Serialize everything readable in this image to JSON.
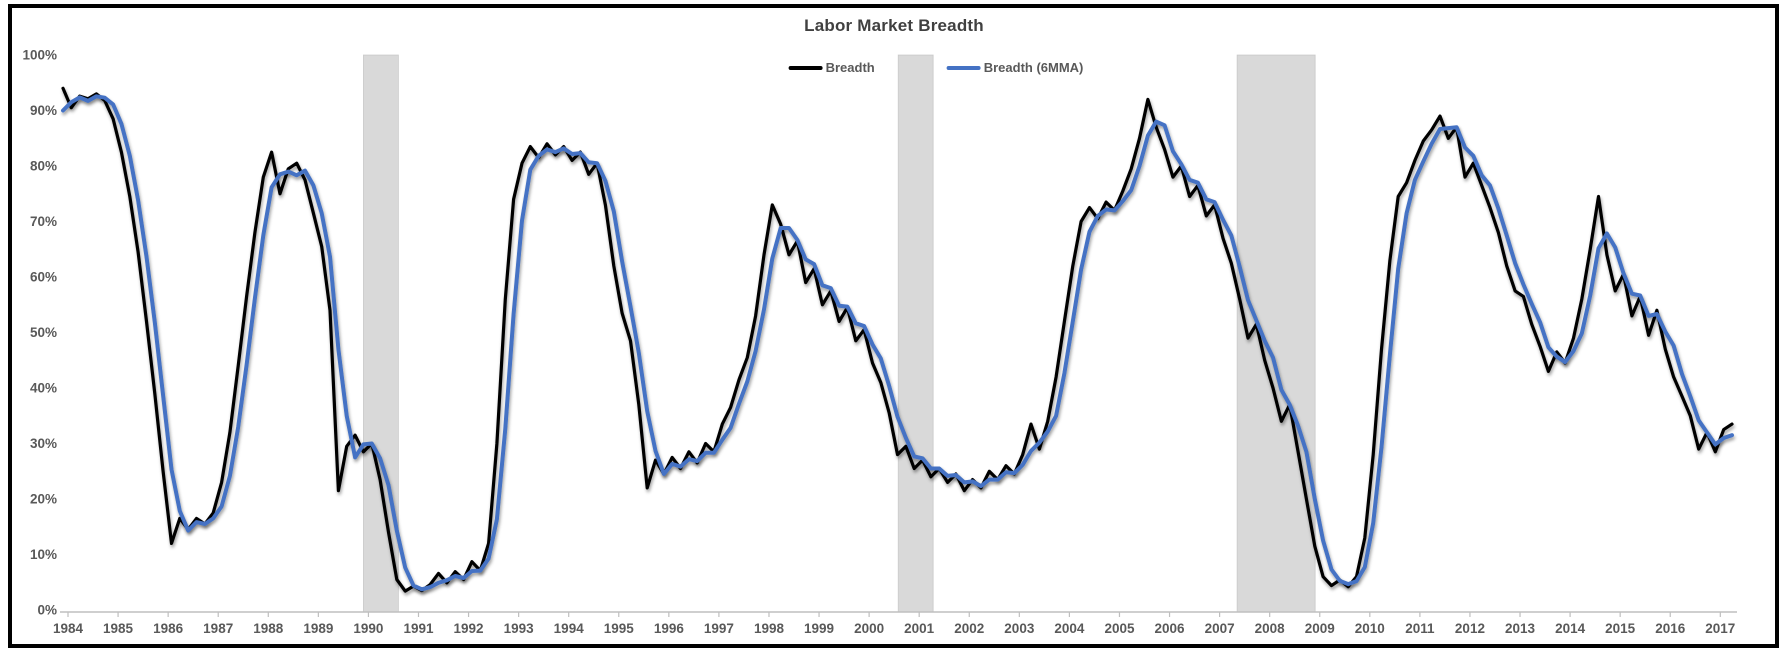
{
  "window": {
    "background": "#FFFFFF",
    "frame_color": "#000000"
  },
  "chart_data": {
    "type": "line",
    "title": "Labor Market Breadth",
    "title_color": "#404040",
    "background": "#FFFFFF",
    "grid": "off",
    "legend_position": "top-center",
    "axis_color": "#BFBFBF",
    "label_color": "#595959",
    "band_color": "#D9D9D9",
    "band_edge_color": "#BDBDBD",
    "y_axis": {
      "min": 0,
      "max": 100,
      "tick_labels": [
        "0%",
        "10%",
        "20%",
        "30%",
        "40%",
        "50%",
        "60%",
        "70%",
        "80%",
        "90%",
        "100%"
      ]
    },
    "x_axis": {
      "tick_labels": [
        "1984",
        "1985",
        "1986",
        "1987",
        "1988",
        "1989",
        "1990",
        "1991",
        "1992",
        "1993",
        "1994",
        "1995",
        "1996",
        "1997",
        "1998",
        "1999",
        "2000",
        "2001",
        "2002",
        "2003",
        "2004",
        "2005",
        "2006",
        "2007",
        "2008",
        "2009",
        "2010",
        "2011",
        "2012",
        "2013",
        "2014",
        "2015",
        "2016",
        "2017"
      ]
    },
    "recession_bands": [
      {
        "from": 1990.4,
        "to": 1991.1
      },
      {
        "from": 2001.08,
        "to": 2001.78
      },
      {
        "from": 2007.85,
        "to": 2009.41
      }
    ],
    "x_start": 1984.4,
    "x_step_years": 0.16667,
    "series": [
      {
        "name": "Breadth",
        "color": "#000000",
        "stroke_width": 3.2,
        "values": [
          94,
          90.5,
          92.6,
          92.1,
          93,
          91.8,
          88.5,
          82.5,
          74.5,
          64.5,
          52,
          39,
          25,
          12,
          16.5,
          14.5,
          16.5,
          15.5,
          17.5,
          23,
          32,
          44,
          56.5,
          68,
          78,
          82.5,
          75,
          79.5,
          80.5,
          77.5,
          71.5,
          65.5,
          54,
          21.5,
          29.5,
          31.5,
          28.5,
          30,
          23.5,
          14,
          5.5,
          3.4,
          4.3,
          3.5,
          4.6,
          6.6,
          4.9,
          6.9,
          5.5,
          8.7,
          7.1,
          12,
          30,
          56,
          74,
          80.5,
          83.5,
          81.5,
          84,
          82,
          83.5,
          81,
          82.5,
          78.5,
          80.5,
          73,
          62,
          53.5,
          48.5,
          37,
          22,
          27,
          24.5,
          27.5,
          25.5,
          28.5,
          26.5,
          30,
          28.5,
          33.5,
          36.5,
          41.5,
          45.5,
          53,
          64,
          73,
          69.5,
          64,
          66.5,
          59,
          61.5,
          55,
          57.5,
          52,
          54.5,
          48.5,
          50.5,
          44.5,
          41,
          35.5,
          28,
          29.5,
          25.5,
          27,
          24,
          25.5,
          23,
          24.5,
          21.5,
          23.5,
          22,
          25,
          23.5,
          26,
          24.5,
          28,
          33.5,
          29,
          34,
          42,
          52,
          62,
          70,
          72.5,
          70.5,
          73.5,
          72,
          75.5,
          79.5,
          85,
          92,
          87,
          83,
          78,
          80,
          74.5,
          76.5,
          71,
          73,
          67,
          62.5,
          56,
          49,
          51.5,
          45,
          40,
          34,
          37,
          28.5,
          20,
          11.5,
          6,
          4.4,
          5.4,
          4.2,
          6,
          13,
          28,
          47,
          63,
          74.5,
          77,
          81,
          84.5,
          86.5,
          89,
          85,
          87,
          78,
          80.5,
          76.5,
          72.5,
          68,
          62,
          57.5,
          56.5,
          51.5,
          47.5,
          43,
          46.5,
          44.5,
          49,
          56,
          65,
          74.5,
          64,
          57.5,
          60.5,
          53,
          56.5,
          49.5,
          54,
          47,
          42,
          38.5,
          35,
          29,
          32,
          28.5,
          32.5,
          33.5
        ]
      },
      {
        "name": "Breadth (6MMA)",
        "color": "#4472C4",
        "stroke_width": 4,
        "derived_from": "Breadth",
        "definition": "trailing 6-month moving average",
        "ma_window_samples": 3,
        "ma_seed": [
          86,
          90
        ]
      }
    ]
  }
}
